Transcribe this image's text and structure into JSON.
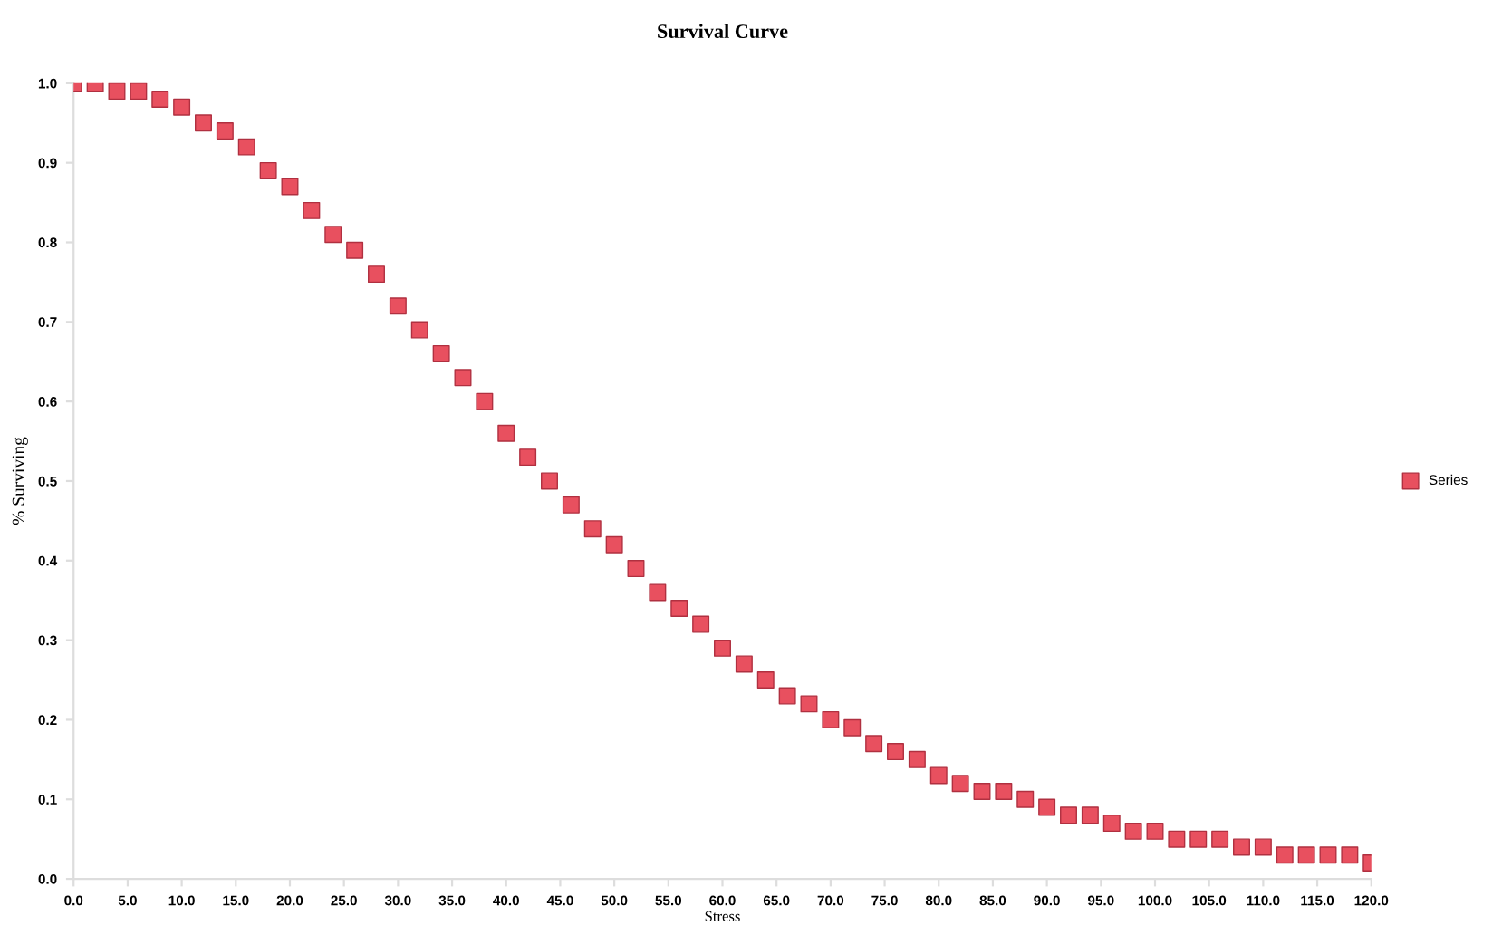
{
  "chart_data": {
    "type": "scatter",
    "title": "Survival Curve",
    "xlabel": "Stress",
    "ylabel": "% Surviving",
    "x": [
      0,
      2,
      4,
      6,
      8,
      10,
      12,
      14,
      16,
      18,
      20,
      22,
      24,
      26,
      28,
      30,
      32,
      34,
      36,
      38,
      40,
      42,
      44,
      46,
      48,
      50,
      52,
      54,
      56,
      58,
      60,
      62,
      64,
      66,
      68,
      70,
      72,
      74,
      76,
      78,
      80,
      82,
      84,
      86,
      88,
      90,
      92,
      94,
      96,
      98,
      100,
      102,
      104,
      106,
      108,
      110,
      112,
      114,
      116,
      118,
      120
    ],
    "series": [
      {
        "name": "Series",
        "color": "#e8505f",
        "values": [
          1.0,
          1.0,
          0.99,
          0.99,
          0.98,
          0.97,
          0.95,
          0.94,
          0.92,
          0.89,
          0.87,
          0.84,
          0.81,
          0.79,
          0.76,
          0.72,
          0.69,
          0.66,
          0.63,
          0.6,
          0.56,
          0.53,
          0.5,
          0.47,
          0.44,
          0.42,
          0.39,
          0.36,
          0.34,
          0.32,
          0.29,
          0.27,
          0.25,
          0.23,
          0.22,
          0.2,
          0.19,
          0.17,
          0.16,
          0.15,
          0.13,
          0.12,
          0.11,
          0.11,
          0.1,
          0.09,
          0.08,
          0.08,
          0.07,
          0.06,
          0.06,
          0.05,
          0.05,
          0.05,
          0.04,
          0.04,
          0.03,
          0.03,
          0.03,
          0.03,
          0.02
        ]
      }
    ],
    "xlim": [
      0,
      120
    ],
    "xticks": [
      {
        "value": 0,
        "label": "0.0"
      },
      {
        "value": 5,
        "label": "5.0"
      },
      {
        "value": 10,
        "label": "10.0"
      },
      {
        "value": 15,
        "label": "15.0"
      },
      {
        "value": 20,
        "label": "20.0"
      },
      {
        "value": 25,
        "label": "25.0"
      },
      {
        "value": 30,
        "label": "30.0"
      },
      {
        "value": 35,
        "label": "35.0"
      },
      {
        "value": 40,
        "label": "40.0"
      },
      {
        "value": 45,
        "label": "45.0"
      },
      {
        "value": 50,
        "label": "50.0"
      },
      {
        "value": 55,
        "label": "55.0"
      },
      {
        "value": 60,
        "label": "60.0"
      },
      {
        "value": 65,
        "label": "65.0"
      },
      {
        "value": 70,
        "label": "70.0"
      },
      {
        "value": 75,
        "label": "75.0"
      },
      {
        "value": 80,
        "label": "80.0"
      },
      {
        "value": 85,
        "label": "85.0"
      },
      {
        "value": 90,
        "label": "90.0"
      },
      {
        "value": 95,
        "label": "95.0"
      },
      {
        "value": 100,
        "label": "100.0"
      },
      {
        "value": 105,
        "label": "105.0"
      },
      {
        "value": 110,
        "label": "110.0"
      },
      {
        "value": 115,
        "label": "115.0"
      },
      {
        "value": 120,
        "label": "120.0"
      }
    ],
    "ylim": [
      0,
      1
    ],
    "yticks": [
      {
        "value": 0,
        "label": "0.0"
      },
      {
        "value": 0.1,
        "label": "0.1"
      },
      {
        "value": 0.2,
        "label": "0.2"
      },
      {
        "value": 0.3,
        "label": "0.3"
      },
      {
        "value": 0.4,
        "label": "0.4"
      },
      {
        "value": 0.5,
        "label": "0.5"
      },
      {
        "value": 0.6,
        "label": "0.6"
      },
      {
        "value": 0.7,
        "label": "0.7"
      },
      {
        "value": 0.8,
        "label": "0.8"
      },
      {
        "value": 0.9,
        "label": "0.9"
      },
      {
        "value": 1.0,
        "label": "1.0"
      }
    ],
    "marker": "square",
    "legend": "right",
    "grid": false
  }
}
